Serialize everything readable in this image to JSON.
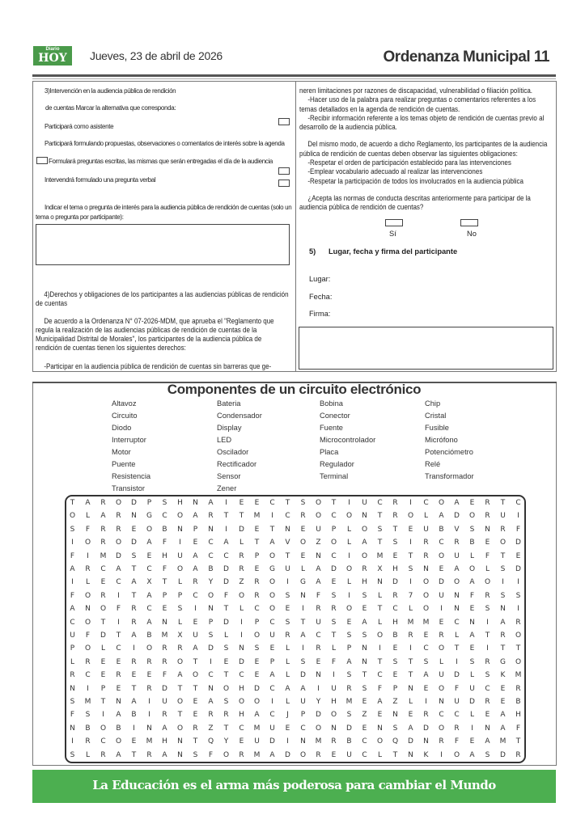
{
  "header": {
    "logo_small": "Diario",
    "logo_big": "HOY",
    "date": "Jueves, 23 de abril  de  2026",
    "section": "Ordenanza Municipal",
    "page_number": "11",
    "brand_color": "#4caf50"
  },
  "left": {
    "q3_line1": "3)Intervención en la audiencia pública de rendición",
    "q3_line2": "de cuentas Marcar la alternativa que corresponda:",
    "opt1": "Participará como asistente",
    "opt2": "Participará formulando propuestas, observaciones o comentarios de interés sobre la agenda",
    "opt3": "Formulará preguntas escritas, las mismas que serán entregadas el día de la audiencia",
    "opt4": "Intervendrá formulado una pregunta verbal",
    "topic_prompt_1": "Indicar el tema o pregunta de interés para la audiencia pública de rendición de cuentas (solo un",
    "topic_prompt_2": "tema o pregunta por participante):",
    "q4_title": "4)Derechos y obligaciones de los participantes a las audiencias públicas de rendición de cuentas",
    "q4_para": "De acuerdo a la Ordenanza N° 07-2026-MDM, que aprueba el \"Reglamento que regula la realización de las audiencias públicas de rendición de cuentas de la Municipalidad Distrital de Morales\", los participantes de la audiencia pública de rendición de cuentas tienen los siguientes derechos:",
    "right1_start": "-Participar en la audiencia pública de rendición de cuentas sin barreras que ge-"
  },
  "right": {
    "right1_end": "neren limitaciones por razones de discapacidad, vulnerabilidad o filiación política.",
    "right2": "-Hacer uso de la palabra para realizar preguntas o comentarios referentes a los temas detallados en la agenda de rendición de cuentas.",
    "right3": "-Recibir información referente a los temas objeto de rendición de cuentas previo al desarrollo de la audiencia pública.",
    "obligations_intro": "Del mismo modo, de acuerdo a dicho Reglamento, los participantes de la audiencia pública de rendición de cuentas deben observar las siguientes obligaciones:",
    "obl1": "-Respetar el orden de participación establecido para las intervenciones",
    "obl2": "-Emplear vocabulario adecuado al realizar las intervenciones",
    "obl3": "-Respetar la participación de todos los involucrados en la audiencia pública",
    "accept_question": "¿Acepta las normas de conducta descritas anteriormente para participar de la audiencia pública de rendición de cuentas?",
    "yes": "Sí",
    "no": "No",
    "q5_num": "5)",
    "q5_title": "Lugar, fecha y firma del participante",
    "place": "Lugar:",
    "date": "Fecha:",
    "signature": "Firma:"
  },
  "puzzle": {
    "title": "Componentes de un circuito electrónico",
    "words": [
      [
        "Altavoz",
        "Circuito",
        "Diodo",
        "Interruptor",
        "Motor",
        "Puente",
        "Resistencia",
        "Transistor"
      ],
      [
        "Bateria",
        "Condensador",
        "Display",
        "LED",
        "Oscilador",
        "Rectificador",
        "Sensor",
        "Zener"
      ],
      [
        "Bobina",
        "Conector",
        "Fuente",
        "Microcontrolador",
        "Placa",
        "Regulador",
        "Terminal"
      ],
      [
        "Chip",
        "Cristal",
        "Fusible",
        "Micrófono",
        "Potenciómetro",
        "Relé",
        "Transformador"
      ]
    ],
    "grid": [
      "TARODPSHNAIEECTSOTIUCRICOAERTC",
      "OLARNGCOARTTMICROCONTROLADORUI",
      "SFRREOBNPNIDETNEUPLOSTEUBVSNRF",
      "IORODAFIECALTAVOZOLATSIRCRBEOD",
      "FIMDSEHUACCRPOTENCIOMETROULFTE",
      "ARCATCFOABDREGULADORXHSNEAOLSD",
      "ILECAXTLRYDZROIGAELHNDIODOAOII",
      "FORITAPPCOFOROSNFSISLR7OUNFRSS",
      "ANOFRCESINTLCOEIRROETCLOINESNI",
      "COTIRANLEPDIPCSTUSEALHMMECNIAR",
      "UFDTABMXUSLIOURACTSSOBRERLATRO",
      "POLCIORRADSNSELIRLPNIEICOTEITT",
      "LREERRROTIEDEPLSEFANTSTSLISRGO",
      "RCEREEFAOCTCEALDNISTCETAUDLSKM",
      "NIPETRDTTNOHDCAAIURSFPNEOFUCER",
      "SMTNAIUOEASOOILUYHMEAZLINUDREB",
      "FSIABIRTERRHACJPDOSZENERCCLEAH",
      "NBOBINAORZTCMUECONDENSADORINAF",
      "IRCOEMHNTQYEUDINMRBCOQDNRFEAMT",
      "SLRATRANSFORMADOREUCLTNKIOASDR"
    ]
  },
  "footer": {
    "slogan": "La Educación es el arma más poderosa para cambiar el Mundo"
  }
}
